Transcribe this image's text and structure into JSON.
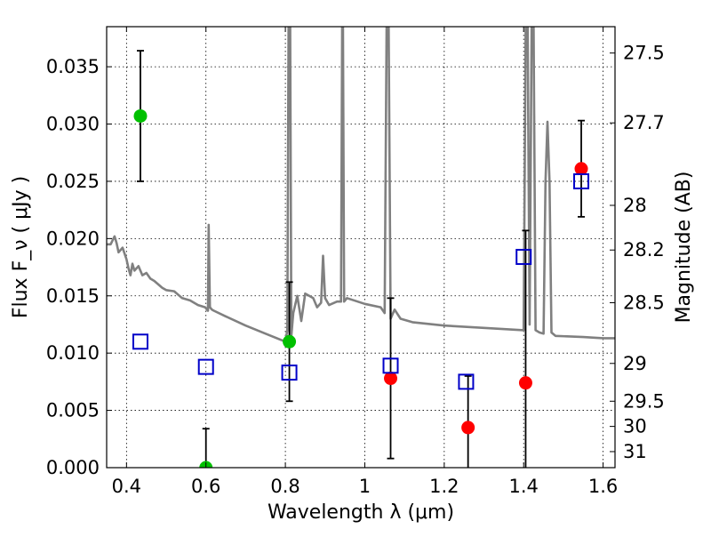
{
  "chart_data": {
    "type": "scatter",
    "xlabel": "Wavelength  λ (μm)",
    "ylabel": "Flux  F_ν  ( μJy )",
    "y2label": "Magnitude (AB)",
    "xlim": [
      0.35,
      1.63
    ],
    "ylim": [
      0.0,
      0.0385
    ],
    "grid": true,
    "x_ticks": [
      {
        "value": 0.4,
        "label": "0.4"
      },
      {
        "value": 0.6,
        "label": "0.6"
      },
      {
        "value": 0.8,
        "label": "0.8"
      },
      {
        "value": 1.0,
        "label": "1"
      },
      {
        "value": 1.2,
        "label": "1.2"
      },
      {
        "value": 1.4,
        "label": "1.4"
      },
      {
        "value": 1.6,
        "label": "1.6"
      }
    ],
    "y_ticks": [
      {
        "value": 0.0,
        "label": "0.000"
      },
      {
        "value": 0.005,
        "label": "0.005"
      },
      {
        "value": 0.01,
        "label": "0.010"
      },
      {
        "value": 0.015,
        "label": "0.015"
      },
      {
        "value": 0.02,
        "label": "0.020"
      },
      {
        "value": 0.025,
        "label": "0.025"
      },
      {
        "value": 0.03,
        "label": "0.030"
      },
      {
        "value": 0.035,
        "label": "0.035"
      }
    ],
    "y2_ticks": [
      {
        "label": "27.5",
        "flux": 0.0362
      },
      {
        "label": "27.7",
        "flux": 0.0301
      },
      {
        "label": "28",
        "flux": 0.0229
      },
      {
        "label": "28.2",
        "flux": 0.019
      },
      {
        "label": "28.5",
        "flux": 0.0144
      },
      {
        "label": "29",
        "flux": 0.0091
      },
      {
        "label": "29.5",
        "flux": 0.0058
      },
      {
        "label": "30",
        "flux": 0.0036
      },
      {
        "label": "31",
        "flux": 0.0014
      }
    ],
    "series": [
      {
        "type": "line",
        "color": "#808080",
        "x": [
          0.35,
          0.36,
          0.37,
          0.375,
          0.38,
          0.39,
          0.4,
          0.405,
          0.41,
          0.415,
          0.42,
          0.43,
          0.44,
          0.45,
          0.46,
          0.47,
          0.48,
          0.49,
          0.5,
          0.52,
          0.54,
          0.56,
          0.58,
          0.598,
          0.605,
          0.607,
          0.61,
          0.615,
          0.62,
          0.65,
          0.7,
          0.75,
          0.8,
          0.805,
          0.808,
          0.81,
          0.812,
          0.815,
          0.82,
          0.83,
          0.84,
          0.85,
          0.86,
          0.87,
          0.88,
          0.89,
          0.895,
          0.9,
          0.91,
          0.93,
          0.94,
          0.943,
          0.945,
          0.948,
          0.955,
          1.0,
          1.04,
          1.05,
          1.055,
          1.06,
          1.065,
          1.075,
          1.09,
          1.12,
          1.2,
          1.3,
          1.4,
          1.405,
          1.41,
          1.415,
          1.42,
          1.425,
          1.43,
          1.44,
          1.45,
          1.455,
          1.46,
          1.465,
          1.47,
          1.48,
          1.55,
          1.6,
          1.63
        ],
        "y": [
          0.0195,
          0.0195,
          0.0202,
          0.0196,
          0.0188,
          0.0192,
          0.0182,
          0.0174,
          0.0168,
          0.0178,
          0.0172,
          0.0176,
          0.0168,
          0.017,
          0.0165,
          0.0163,
          0.016,
          0.0157,
          0.0155,
          0.0154,
          0.0148,
          0.0146,
          0.0142,
          0.014,
          0.0137,
          0.0212,
          0.014,
          0.0138,
          0.0137,
          0.0132,
          0.0124,
          0.0117,
          0.011,
          0.012,
          0.0385,
          0.0385,
          0.0385,
          0.0115,
          0.0135,
          0.015,
          0.0128,
          0.0152,
          0.015,
          0.0148,
          0.014,
          0.0144,
          0.0185,
          0.0148,
          0.0142,
          0.0145,
          0.0145,
          0.0385,
          0.0385,
          0.0145,
          0.0148,
          0.0143,
          0.014,
          0.0135,
          0.0385,
          0.0385,
          0.013,
          0.0138,
          0.013,
          0.0127,
          0.0124,
          0.0122,
          0.012,
          0.0385,
          0.0385,
          0.0125,
          0.0385,
          0.0385,
          0.012,
          0.0118,
          0.0117,
          0.025,
          0.0302,
          0.025,
          0.0118,
          0.0115,
          0.0114,
          0.0113,
          0.0113
        ]
      },
      {
        "type": "errorbar",
        "color": "#00c000",
        "x": [
          0.435,
          0.6,
          0.81
        ],
        "y": [
          0.0307,
          0.0,
          0.011
        ],
        "yerr": [
          0.0057,
          0.0034,
          0.0052
        ]
      },
      {
        "type": "errorbar",
        "color": "#ff0000",
        "x": [
          1.065,
          1.26,
          1.405,
          1.545
        ],
        "y": [
          0.0078,
          0.0035,
          0.0074,
          0.0261
        ],
        "yerr": [
          0.007,
          0.0045,
          0.0133,
          0.0042
        ]
      },
      {
        "type": "scatter",
        "marker": "square-open",
        "color": "#0000c8",
        "x": [
          0.435,
          0.6,
          0.81,
          1.065,
          1.255,
          1.4,
          1.545
        ],
        "y": [
          0.011,
          0.0088,
          0.0083,
          0.0089,
          0.0075,
          0.0184,
          0.025
        ]
      }
    ]
  }
}
